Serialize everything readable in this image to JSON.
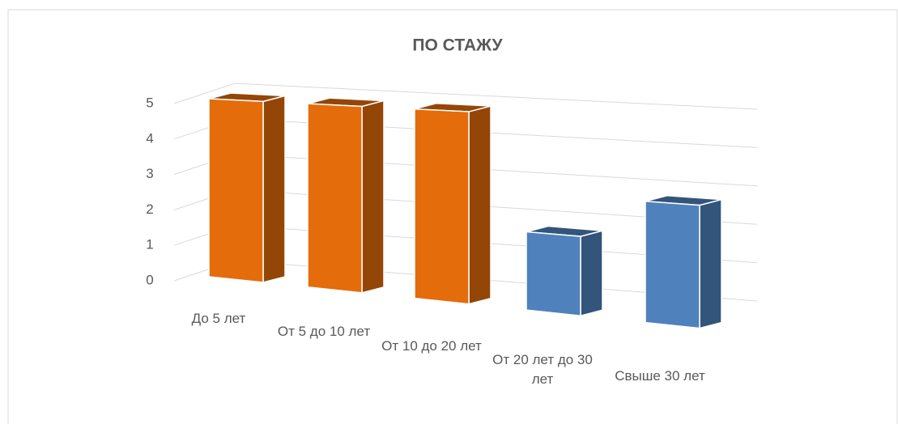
{
  "chart_data": {
    "type": "bar3d",
    "title": "ПО СТАЖУ",
    "categories": [
      "До 5 лет",
      "От 5 до 10 лет",
      "От 10 до 20 лет",
      "От 20 лет до 30 лет",
      "Свыше 30 лет"
    ],
    "values": [
      5,
      5,
      5,
      2,
      3
    ],
    "colors": [
      "#e46c0a",
      "#e46c0a",
      "#e46c0a",
      "#4f81bd",
      "#4f81bd"
    ],
    "ylim": [
      0,
      5
    ],
    "yticks": [
      0,
      1,
      2,
      3,
      4,
      5
    ],
    "grid": true
  }
}
